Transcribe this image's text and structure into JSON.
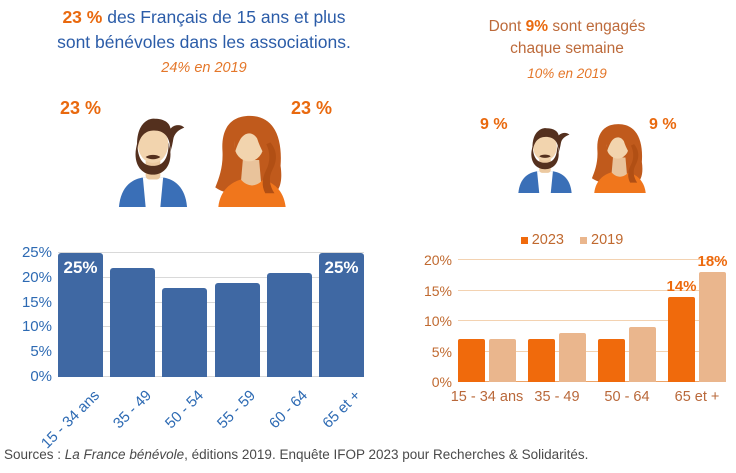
{
  "palette": {
    "blue_text": "#2b5ca8",
    "orange_accent": "#e9690e",
    "orange_muted_text": "#bd6a3a",
    "orange_note": "#e4772a",
    "bar_blue": "#3f68a3",
    "bar_orange_2023": "#f06a0c",
    "bar_tan_2019": "#eab68d",
    "axis_blue": "#2d6ab3",
    "axis_orange": "#c0692f",
    "xlabel_orange": "#b9683a",
    "grid_gray": "#d9d9d9",
    "grid_tan": "#f3d2b1",
    "baseline_tan": "#eda366",
    "value_label_orange": "#ed6a0e",
    "source_gray": "#4a4a4a"
  },
  "header_left": {
    "highlight": "23 %",
    "line1_rest": " des Français de 15 ans et plus",
    "line2": "sont bénévoles dans les associations.",
    "note": "24% en 2019"
  },
  "header_right": {
    "pre": "Dont ",
    "highlight": "9%",
    "post": " sont engagés",
    "line2": "chaque semaine",
    "note": "10% en 2019"
  },
  "avatars_left": {
    "label_left": "23 %",
    "label_right": "23 %"
  },
  "avatars_right": {
    "label_left": "9 %",
    "label_right": "9 %"
  },
  "chart_data": [
    {
      "type": "bar",
      "categories": [
        "15 - 34 ans",
        "35 - 49",
        "50 - 54",
        "55 - 59",
        "60 - 64",
        "65 et +"
      ],
      "values": [
        25,
        22,
        18,
        19,
        21,
        25
      ],
      "bar_value_labels": [
        "25%",
        "",
        "",
        "",
        "",
        "25%"
      ],
      "ylim": [
        0,
        25
      ],
      "yticks": [
        {
          "v": 0,
          "label": "0%"
        },
        {
          "v": 5,
          "label": "5%"
        },
        {
          "v": 10,
          "label": "10%"
        },
        {
          "v": 15,
          "label": "15%"
        },
        {
          "v": 20,
          "label": "20%"
        },
        {
          "v": 25,
          "label": "25%"
        }
      ],
      "grid": true,
      "legend_position": "none",
      "bar_color": "#3f68a3",
      "tick_label_color": "#2d6ab3",
      "xlabel_rotation": -45
    },
    {
      "type": "bar",
      "categories": [
        "15 - 34 ans",
        "35 - 49",
        "50 - 64",
        "65 et +"
      ],
      "series": [
        {
          "name": "2023",
          "color": "#f06a0c",
          "values": [
            7,
            7,
            7,
            14
          ]
        },
        {
          "name": "2019",
          "color": "#eab68d",
          "values": [
            7,
            8,
            9,
            18
          ]
        }
      ],
      "value_labels": [
        {
          "series": 0,
          "category_index": 3,
          "text": "14%"
        },
        {
          "series": 1,
          "category_index": 3,
          "text": "18%"
        }
      ],
      "ylim": [
        0,
        20
      ],
      "yticks": [
        {
          "v": 0,
          "label": "0%"
        },
        {
          "v": 5,
          "label": "5%"
        },
        {
          "v": 10,
          "label": "10%"
        },
        {
          "v": 15,
          "label": "15%"
        },
        {
          "v": 20,
          "label": "20%"
        }
      ],
      "grid": true,
      "legend_position": "top",
      "tick_label_color": "#c0692f",
      "xlabel_color": "#b9683a"
    }
  ],
  "source": {
    "prefix": "Sources : ",
    "italic": "La France bénévole",
    "suffix": ", éditions 2019. Enquête IFOP 2023 pour Recherches & Solidarités."
  }
}
